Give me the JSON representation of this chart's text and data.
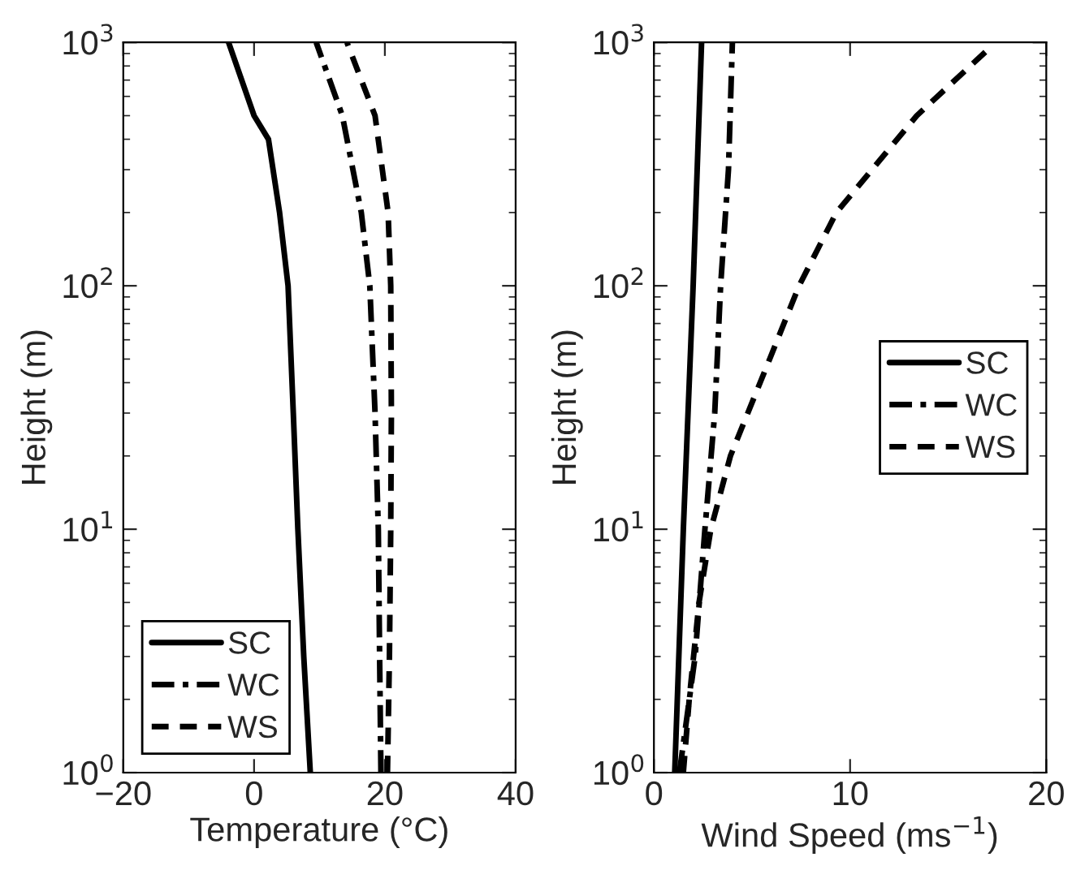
{
  "chart_data": [
    {
      "type": "line",
      "xlabel": "Temperature (°C)",
      "ylabel": "Height (m)",
      "log": "y",
      "xlim": [
        -20,
        40
      ],
      "xticks": [
        {
          "value": -20,
          "label": "−20"
        },
        0,
        20,
        40
      ],
      "ylim": [
        1,
        1000
      ],
      "yticks": [
        {
          "value": 1,
          "label": "10$^{0}$"
        },
        {
          "value": 10,
          "label": "10$^{1}$"
        },
        {
          "value": 100,
          "label": "10$^{2}$"
        },
        {
          "value": 1000,
          "label": "10$^{3}$"
        }
      ],
      "grid": false,
      "legend": "bottom left",
      "series": [
        {
          "name": "SC",
          "color": "#000000",
          "line_style": "solid",
          "x": [
            8.6,
            7.6,
            6.7,
            6.0,
            5.2,
            3.9,
            2.2,
            0.0,
            -3.9
          ],
          "values": [
            1,
            3,
            10,
            30,
            100,
            200,
            400,
            500,
            1000
          ]
        },
        {
          "name": "WC",
          "color": "#000000",
          "line_style": "dashdot",
          "x": [
            19.4,
            19.2,
            19.0,
            18.5,
            17.7,
            16.4,
            13.5,
            9.5
          ],
          "values": [
            1,
            3,
            10,
            30,
            100,
            200,
            500,
            1000
          ]
        },
        {
          "name": "WS",
          "color": "#000000",
          "line_style": "dashed",
          "x": [
            20.4,
            20.7,
            20.9,
            21.0,
            20.9,
            20.5,
            18.5,
            14.2
          ],
          "values": [
            1,
            3,
            10,
            30,
            100,
            200,
            500,
            1000
          ]
        }
      ]
    },
    {
      "type": "line",
      "xlabel": "Wind Speed (ms$^{−1}$)",
      "ylabel": "Height (m)",
      "log": "y",
      "xlim": [
        0,
        20
      ],
      "xticks": [
        0,
        10,
        20
      ],
      "ylim": [
        1,
        1000
      ],
      "yticks": [
        {
          "value": 1,
          "label": "10$^{0}$"
        },
        {
          "value": 10,
          "label": "10$^{1}$"
        },
        {
          "value": 100,
          "label": "10$^{2}$"
        },
        {
          "value": 1000,
          "label": "10$^{3}$"
        }
      ],
      "grid": false,
      "legend": "right",
      "series": [
        {
          "name": "SC",
          "color": "#000000",
          "line_style": "solid",
          "x": [
            1.06,
            1.5,
            2.0,
            2.43
          ],
          "values": [
            1,
            10,
            100,
            1000
          ]
        },
        {
          "name": "WC",
          "color": "#000000",
          "line_style": "dashdot",
          "x": [
            1.3,
            2.1,
            2.6,
            3.1,
            3.4,
            3.8,
            4.0
          ],
          "values": [
            1,
            3,
            10,
            30,
            100,
            300,
            1000
          ]
        },
        {
          "name": "WS",
          "color": "#000000",
          "line_style": "dashed",
          "x": [
            1.5,
            1.8,
            2.3,
            2.9,
            3.9,
            5.9,
            7.4,
            9.3,
            13.4,
            17.0
          ],
          "values": [
            1,
            2,
            5,
            10,
            20,
            50,
            100,
            200,
            500,
            930
          ]
        }
      ]
    }
  ]
}
